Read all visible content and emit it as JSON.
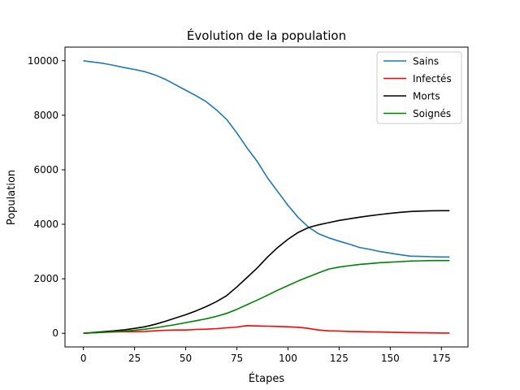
{
  "chart_data": {
    "type": "line",
    "title": "Évolution de la population",
    "xlabel": "Étapes",
    "ylabel": "Population",
    "xlim": [
      -9,
      188
    ],
    "ylim": [
      -500,
      10500
    ],
    "xticks": [
      0,
      25,
      50,
      75,
      100,
      125,
      150,
      175
    ],
    "yticks": [
      0,
      2000,
      4000,
      6000,
      8000,
      10000
    ],
    "grid": false,
    "legend_position": "top-right",
    "series": [
      {
        "name": "Sains",
        "color": "#1f77b4",
        "x": [
          0,
          5,
          10,
          15,
          20,
          25,
          30,
          35,
          40,
          45,
          50,
          55,
          60,
          65,
          70,
          75,
          80,
          85,
          90,
          95,
          100,
          105,
          110,
          115,
          120,
          125,
          130,
          135,
          140,
          145,
          150,
          155,
          160,
          165,
          170,
          175,
          179
        ],
        "y": [
          10000,
          9950,
          9900,
          9830,
          9750,
          9680,
          9600,
          9480,
          9320,
          9120,
          8920,
          8720,
          8500,
          8200,
          7850,
          7350,
          6800,
          6300,
          5700,
          5200,
          4700,
          4250,
          3900,
          3650,
          3500,
          3380,
          3270,
          3150,
          3080,
          3000,
          2940,
          2880,
          2830,
          2820,
          2810,
          2800,
          2800
        ]
      },
      {
        "name": "Infectés",
        "color": "#ff0000",
        "x": [
          0,
          5,
          10,
          15,
          20,
          25,
          30,
          35,
          40,
          45,
          50,
          55,
          60,
          65,
          70,
          75,
          80,
          85,
          90,
          95,
          100,
          105,
          110,
          115,
          120,
          125,
          130,
          135,
          140,
          145,
          150,
          155,
          160,
          165,
          170,
          175,
          179
        ],
        "y": [
          0,
          20,
          40,
          50,
          60,
          60,
          70,
          90,
          110,
          120,
          120,
          140,
          150,
          170,
          200,
          230,
          280,
          270,
          260,
          250,
          240,
          220,
          180,
          120,
          90,
          80,
          70,
          60,
          55,
          50,
          40,
          30,
          25,
          20,
          15,
          10,
          10
        ]
      },
      {
        "name": "Morts",
        "color": "#000000",
        "x": [
          0,
          5,
          10,
          15,
          20,
          25,
          30,
          35,
          40,
          45,
          50,
          55,
          60,
          65,
          70,
          75,
          80,
          85,
          90,
          95,
          100,
          105,
          110,
          115,
          120,
          125,
          130,
          135,
          140,
          145,
          150,
          155,
          160,
          165,
          170,
          175,
          179
        ],
        "y": [
          0,
          30,
          60,
          90,
          130,
          180,
          240,
          330,
          440,
          560,
          680,
          820,
          980,
          1160,
          1380,
          1700,
          2050,
          2400,
          2800,
          3150,
          3450,
          3700,
          3880,
          3980,
          4060,
          4140,
          4200,
          4260,
          4310,
          4360,
          4400,
          4440,
          4470,
          4485,
          4495,
          4500,
          4500
        ]
      },
      {
        "name": "Soignés",
        "color": "#008000",
        "x": [
          0,
          5,
          10,
          15,
          20,
          25,
          30,
          35,
          40,
          45,
          50,
          55,
          60,
          65,
          70,
          75,
          80,
          85,
          90,
          95,
          100,
          105,
          110,
          115,
          120,
          125,
          130,
          135,
          140,
          145,
          150,
          155,
          160,
          165,
          170,
          175,
          179
        ],
        "y": [
          0,
          20,
          40,
          60,
          80,
          110,
          150,
          200,
          260,
          320,
          390,
          460,
          530,
          620,
          730,
          880,
          1050,
          1220,
          1400,
          1580,
          1750,
          1920,
          2070,
          2220,
          2360,
          2430,
          2480,
          2530,
          2560,
          2590,
          2610,
          2630,
          2650,
          2660,
          2670,
          2670,
          2670
        ]
      }
    ]
  }
}
